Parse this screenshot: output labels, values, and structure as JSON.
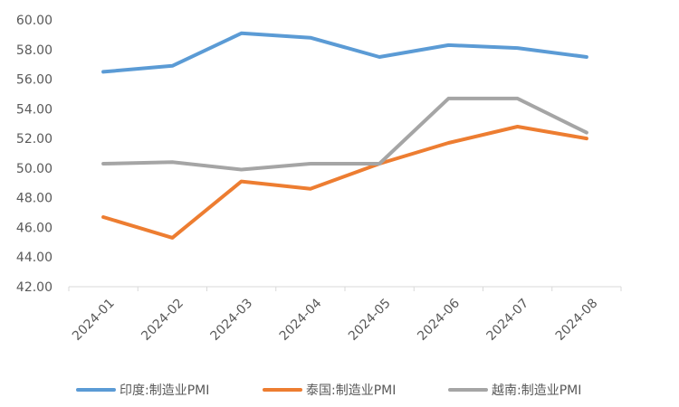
{
  "chart_data": {
    "type": "line",
    "categories": [
      "2024-01",
      "2024-02",
      "2024-03",
      "2024-04",
      "2024-05",
      "2024-06",
      "2024-07",
      "2024-08"
    ],
    "series": [
      {
        "name": "印度:制造业PMI",
        "color": "#5B9BD5",
        "values": [
          56.5,
          56.9,
          59.1,
          58.8,
          57.5,
          58.3,
          58.1,
          57.5
        ]
      },
      {
        "name": "泰国:制造业PMI",
        "color": "#ED7D31",
        "values": [
          46.7,
          45.3,
          49.1,
          48.6,
          50.3,
          51.7,
          52.8,
          52.0
        ]
      },
      {
        "name": "越南:制造业PMI",
        "color": "#A5A5A5",
        "values": [
          50.3,
          50.4,
          49.9,
          50.3,
          50.3,
          54.7,
          54.7,
          52.4
        ]
      }
    ],
    "y_ticks": [
      "42.00",
      "44.00",
      "46.00",
      "48.00",
      "50.00",
      "52.00",
      "54.00",
      "56.00",
      "58.00",
      "60.00"
    ],
    "ylim": [
      42,
      60
    ],
    "title": "",
    "xlabel": "",
    "ylabel": "",
    "grid": false,
    "legend_position": "bottom"
  }
}
